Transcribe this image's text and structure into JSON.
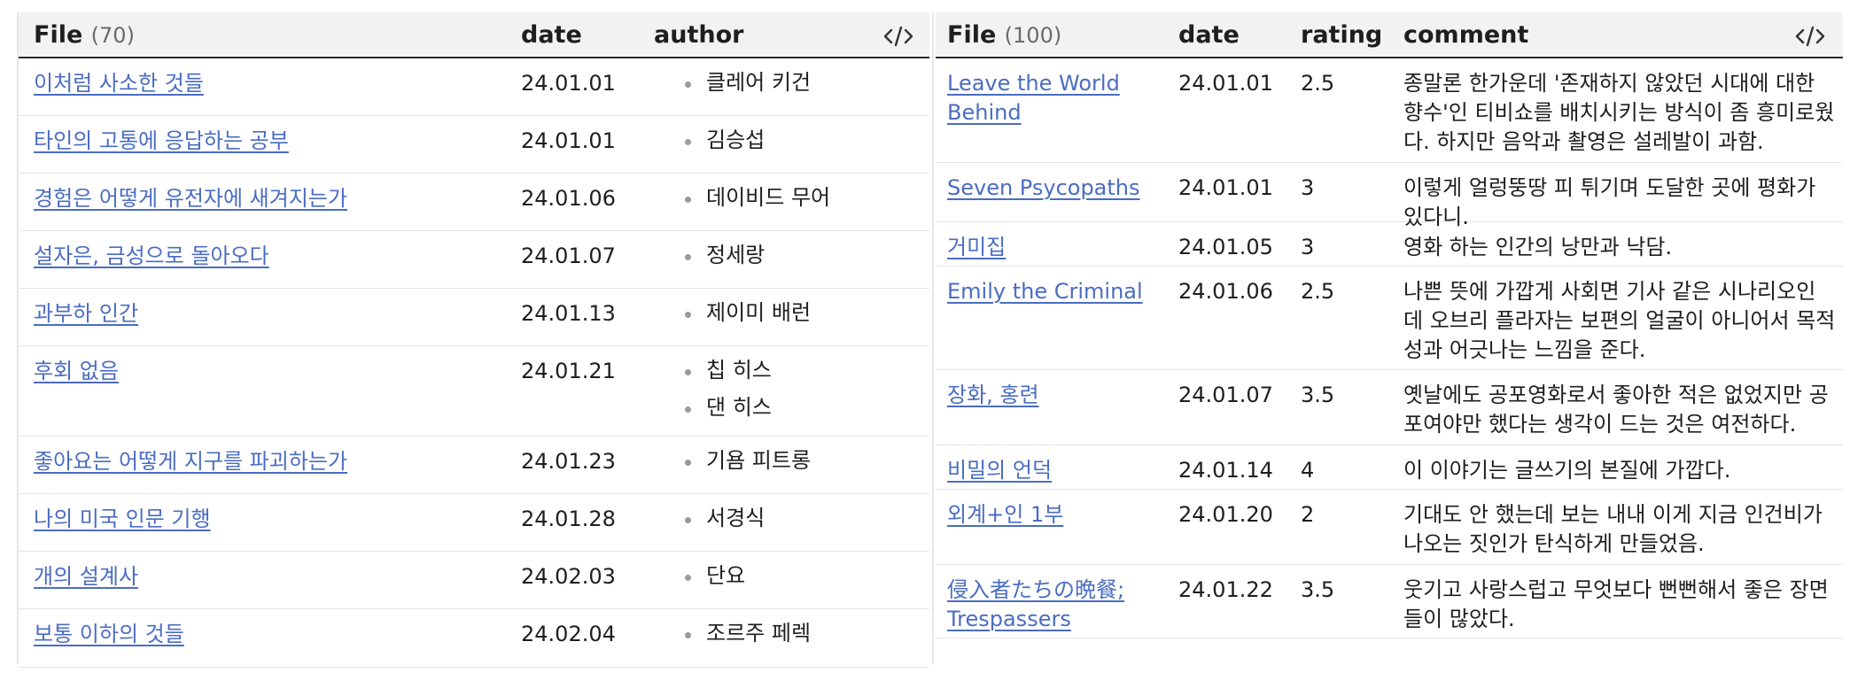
{
  "left_table": {
    "headers": {
      "file": "File",
      "count": "(70)",
      "date": "date",
      "author": "author"
    },
    "code_icon": "code-icon",
    "rows": [
      {
        "file": "이처럼 사소한 것들",
        "date": "24.01.01",
        "authors": [
          "클레어 키건"
        ]
      },
      {
        "file": "타인의 고통에 응답하는 공부",
        "date": "24.01.01",
        "authors": [
          "김승섭"
        ]
      },
      {
        "file": "경험은 어떻게 유전자에 새겨지는가",
        "date": "24.01.06",
        "authors": [
          "데이비드 무어"
        ]
      },
      {
        "file": "설자은, 금성으로 돌아오다",
        "date": "24.01.07",
        "authors": [
          "정세랑"
        ]
      },
      {
        "file": "과부하 인간",
        "date": "24.01.13",
        "authors": [
          "제이미 배런"
        ]
      },
      {
        "file": "후회 없음",
        "date": "24.01.21",
        "authors": [
          "칩 히스",
          "댄 히스"
        ]
      },
      {
        "file": "좋아요는 어떻게 지구를 파괴하는가",
        "date": "24.01.23",
        "authors": [
          "기욤 피트롱"
        ]
      },
      {
        "file": "나의 미국 인문 기행",
        "date": "24.01.28",
        "authors": [
          "서경식"
        ]
      },
      {
        "file": "개의 설계사",
        "date": "24.02.03",
        "authors": [
          "단요"
        ]
      },
      {
        "file": "보통 이하의 것들",
        "date": "24.02.04",
        "authors": [
          "조르주 페렉"
        ]
      }
    ]
  },
  "right_table": {
    "headers": {
      "file": "File",
      "count": "(100)",
      "date": "date",
      "rating": "rating",
      "comment": "comment"
    },
    "code_icon": "code-icon",
    "rows": [
      {
        "file": [
          "Leave the World",
          "Behind"
        ],
        "date": "24.01.01",
        "rating": "2.5",
        "comment": [
          "종말론 한가운데 '존재하지 않았던 시대에 대한",
          "향수'인 티비쇼를 배치시키는 방식이 좀 흥미로웠",
          "다. 하지만 음악과 촬영은 설레발이 과함."
        ]
      },
      {
        "file": [
          "Seven Psycopaths"
        ],
        "date": "24.01.01",
        "rating": "3",
        "comment": [
          "이렇게 얼렁뚱땅 피 튀기며 도달한 곳에 평화가",
          "있다니."
        ]
      },
      {
        "file": [
          "거미집"
        ],
        "date": "24.01.05",
        "rating": "3",
        "comment": [
          "영화 하는 인간의 낭만과 낙담."
        ]
      },
      {
        "file": [
          "Emily the Criminal"
        ],
        "date": "24.01.06",
        "rating": "2.5",
        "comment": [
          "나쁜 뜻에 가깝게 사회면 기사 같은 시나리오인",
          "데 오브리 플라자는 보편의 얼굴이 아니어서 목적",
          "성과 어긋나는 느낌을 준다."
        ]
      },
      {
        "file": [
          "장화, 홍련"
        ],
        "date": "24.01.07",
        "rating": "3.5",
        "comment": [
          "옛날에도 공포영화로서 좋아한 적은 없었지만 공",
          "포여야만 했다는 생각이 드는 것은 여전하다."
        ]
      },
      {
        "file": [
          "비밀의 언덕"
        ],
        "date": "24.01.14",
        "rating": "4",
        "comment": [
          "이 이야기는 글쓰기의 본질에 가깝다."
        ]
      },
      {
        "file": [
          "외계+인 1부"
        ],
        "date": "24.01.20",
        "rating": "2",
        "comment": [
          "기대도 안 했는데 보는 내내 이게 지금 인건비가",
          "나오는 짓인가 탄식하게 만들었음."
        ]
      },
      {
        "file": [
          "侵入者たちの晩餐;",
          "Trespassers"
        ],
        "date": "24.01.22",
        "rating": "3.5",
        "comment": [
          "웃기고 사랑스럽고 무엇보다 뻔뻔해서 좋은 장면",
          "들이 많았다."
        ]
      }
    ]
  }
}
